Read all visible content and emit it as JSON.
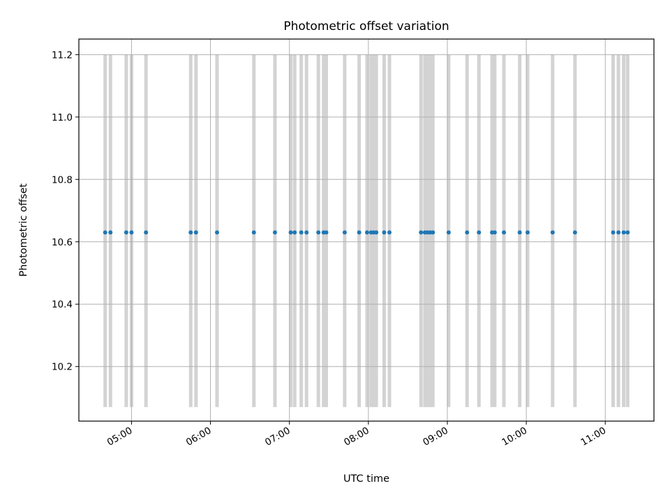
{
  "chart_data": {
    "type": "scatter",
    "title": "Photometric offset variation",
    "xlabel": "UTC time",
    "ylabel": "Photometric offset",
    "x_ticks": [
      "05:00",
      "06:00",
      "07:00",
      "08:00",
      "09:00",
      "10:00",
      "11:00"
    ],
    "y_ticks": [
      "10.2",
      "10.4",
      "10.6",
      "10.8",
      "11.0",
      "11.2"
    ],
    "xlim": [
      "04:20",
      "11:37"
    ],
    "ylim": [
      10.025,
      11.25
    ],
    "grid": true,
    "colors": {
      "points": "#1f77b4",
      "bands": "#d3d3d3",
      "grid": "#b0b0b0"
    },
    "series": [
      {
        "values": [
          {
            "x": "04:40",
            "y": 10.63
          },
          {
            "x": "04:44",
            "y": 10.63
          },
          {
            "x": "04:56",
            "y": 10.63
          },
          {
            "x": "05:00",
            "y": 10.63
          },
          {
            "x": "05:11",
            "y": 10.63
          },
          {
            "x": "05:45",
            "y": 10.63
          },
          {
            "x": "05:49",
            "y": 10.63
          },
          {
            "x": "06:05",
            "y": 10.63
          },
          {
            "x": "06:33",
            "y": 10.63
          },
          {
            "x": "06:49",
            "y": 10.63
          },
          {
            "x": "07:01",
            "y": 10.63
          },
          {
            "x": "07:04",
            "y": 10.63
          },
          {
            "x": "07:09",
            "y": 10.63
          },
          {
            "x": "07:13",
            "y": 10.63
          },
          {
            "x": "07:22",
            "y": 10.63
          },
          {
            "x": "07:26",
            "y": 10.63
          },
          {
            "x": "07:28",
            "y": 10.63
          },
          {
            "x": "07:42",
            "y": 10.63
          },
          {
            "x": "07:53",
            "y": 10.63
          },
          {
            "x": "07:59",
            "y": 10.63
          },
          {
            "x": "08:02",
            "y": 10.63
          },
          {
            "x": "08:04",
            "y": 10.63
          },
          {
            "x": "08:06",
            "y": 10.63
          },
          {
            "x": "08:12",
            "y": 10.63
          },
          {
            "x": "08:16",
            "y": 10.63
          },
          {
            "x": "08:40",
            "y": 10.63
          },
          {
            "x": "08:43",
            "y": 10.63
          },
          {
            "x": "08:45",
            "y": 10.63
          },
          {
            "x": "08:47",
            "y": 10.63
          },
          {
            "x": "08:49",
            "y": 10.63
          },
          {
            "x": "09:01",
            "y": 10.63
          },
          {
            "x": "09:15",
            "y": 10.63
          },
          {
            "x": "09:24",
            "y": 10.63
          },
          {
            "x": "09:34",
            "y": 10.63
          },
          {
            "x": "09:36",
            "y": 10.63
          },
          {
            "x": "09:43",
            "y": 10.63
          },
          {
            "x": "09:55",
            "y": 10.63
          },
          {
            "x": "10:01",
            "y": 10.63
          },
          {
            "x": "10:20",
            "y": 10.63
          },
          {
            "x": "10:37",
            "y": 10.63
          },
          {
            "x": "11:06",
            "y": 10.63
          },
          {
            "x": "11:10",
            "y": 10.63
          },
          {
            "x": "11:14",
            "y": 10.63
          },
          {
            "x": "11:17",
            "y": 10.63
          }
        ]
      }
    ],
    "bands": {
      "y_range": [
        10.07,
        11.2
      ],
      "x": [
        "04:40",
        "04:44",
        "04:56",
        "05:00",
        "05:11",
        "05:45",
        "05:49",
        "06:05",
        "06:33",
        "06:49",
        "07:01",
        "07:04",
        "07:09",
        "07:13",
        "07:22",
        "07:26",
        "07:28",
        "07:42",
        "07:53",
        "07:59",
        "08:02",
        "08:04",
        "08:06",
        "08:12",
        "08:16",
        "08:40",
        "08:43",
        "08:45",
        "08:47",
        "08:49",
        "09:01",
        "09:15",
        "09:24",
        "09:34",
        "09:36",
        "09:43",
        "09:55",
        "10:01",
        "10:20",
        "10:37",
        "11:06",
        "11:10",
        "11:14",
        "11:17"
      ]
    }
  }
}
